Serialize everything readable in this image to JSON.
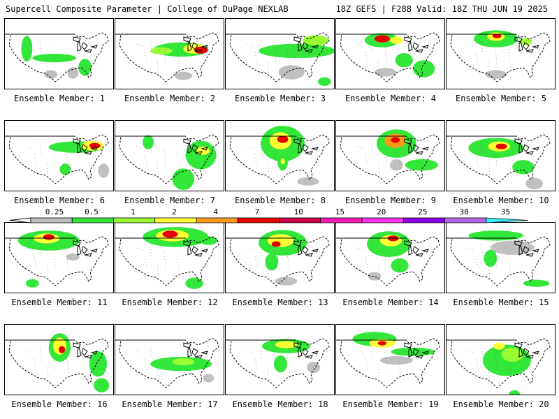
{
  "header": {
    "left": "Supercell Composite Parameter | College of DuPage NEXLAB",
    "right": "18Z GEFS | F288 Valid: 18Z THU JUN 19 2025"
  },
  "members": [
    {
      "label": "Ensemble Member: 1",
      "blobs": [
        [
          0.2,
          0.42,
          0.05,
          0.18,
          "#33e63a"
        ],
        [
          0.45,
          0.55,
          0.2,
          0.06,
          "#33e63a"
        ],
        [
          0.73,
          0.68,
          0.06,
          0.12,
          "#33e63a"
        ],
        [
          0.42,
          0.78,
          0.06,
          0.06,
          "#c0c0c0"
        ],
        [
          0.62,
          0.76,
          0.05,
          0.08,
          "#c0c0c0"
        ]
      ]
    },
    {
      "label": "Ensemble Member: 2",
      "blobs": [
        [
          0.6,
          0.43,
          0.25,
          0.1,
          "#33e63a"
        ],
        [
          0.72,
          0.42,
          0.1,
          0.07,
          "#ffff33"
        ],
        [
          0.78,
          0.44,
          0.06,
          0.05,
          "#e60000"
        ],
        [
          0.42,
          0.45,
          0.1,
          0.05,
          "#99ff33"
        ],
        [
          0.62,
          0.8,
          0.08,
          0.06,
          "#c0c0c0"
        ]
      ]
    },
    {
      "label": "Ensemble Member: 3",
      "blobs": [
        [
          0.65,
          0.45,
          0.35,
          0.1,
          "#33e63a"
        ],
        [
          0.82,
          0.3,
          0.12,
          0.07,
          "#99ff33"
        ],
        [
          0.6,
          0.75,
          0.12,
          0.1,
          "#c0c0c0"
        ],
        [
          0.9,
          0.88,
          0.06,
          0.06,
          "#33e63a"
        ]
      ]
    },
    {
      "label": "Ensemble Member: 4",
      "blobs": [
        [
          0.42,
          0.3,
          0.16,
          0.1,
          "#33e63a"
        ],
        [
          0.42,
          0.28,
          0.07,
          0.05,
          "#e60000"
        ],
        [
          0.55,
          0.3,
          0.06,
          0.05,
          "#ffff33"
        ],
        [
          0.62,
          0.58,
          0.08,
          0.1,
          "#33e63a"
        ],
        [
          0.8,
          0.7,
          0.1,
          0.12,
          "#33e63a"
        ],
        [
          0.45,
          0.75,
          0.1,
          0.06,
          "#c0c0c0"
        ]
      ]
    },
    {
      "label": "Ensemble Member: 5",
      "blobs": [
        [
          0.45,
          0.28,
          0.2,
          0.12,
          "#33e63a"
        ],
        [
          0.45,
          0.25,
          0.08,
          0.06,
          "#ffff33"
        ],
        [
          0.46,
          0.24,
          0.04,
          0.03,
          "#e60000"
        ],
        [
          0.72,
          0.32,
          0.06,
          0.05,
          "#99ff33"
        ],
        [
          0.45,
          0.78,
          0.1,
          0.06,
          "#c0c0c0"
        ]
      ]
    },
    {
      "label": "Ensemble Member: 6",
      "blobs": [
        [
          0.65,
          0.37,
          0.25,
          0.08,
          "#33e63a"
        ],
        [
          0.8,
          0.35,
          0.1,
          0.07,
          "#ffff33"
        ],
        [
          0.82,
          0.35,
          0.05,
          0.04,
          "#e60000"
        ],
        [
          0.55,
          0.68,
          0.05,
          0.08,
          "#33e63a"
        ],
        [
          0.9,
          0.7,
          0.05,
          0.1,
          "#c0c0c0"
        ]
      ]
    },
    {
      "label": "Ensemble Member: 7",
      "blobs": [
        [
          0.78,
          0.48,
          0.14,
          0.2,
          "#33e63a"
        ],
        [
          0.8,
          0.42,
          0.06,
          0.06,
          "#ffff33"
        ],
        [
          0.62,
          0.82,
          0.1,
          0.15,
          "#33e63a"
        ],
        [
          0.3,
          0.3,
          0.05,
          0.1,
          "#33e63a"
        ]
      ]
    },
    {
      "label": "Ensemble Member: 8",
      "blobs": [
        [
          0.52,
          0.32,
          0.2,
          0.25,
          "#33e63a"
        ],
        [
          0.5,
          0.28,
          0.1,
          0.12,
          "#ffff33"
        ],
        [
          0.52,
          0.26,
          0.05,
          0.05,
          "#e60000"
        ],
        [
          0.52,
          0.55,
          0.05,
          0.15,
          "#33e63a"
        ],
        [
          0.52,
          0.57,
          0.02,
          0.04,
          "#ffff33"
        ],
        [
          0.75,
          0.85,
          0.1,
          0.06,
          "#c0c0c0"
        ]
      ]
    },
    {
      "label": "Ensemble Member: 9",
      "blobs": [
        [
          0.55,
          0.32,
          0.18,
          0.2,
          "#33e63a"
        ],
        [
          0.54,
          0.28,
          0.1,
          0.1,
          "#ff9a1a"
        ],
        [
          0.54,
          0.27,
          0.04,
          0.04,
          "#e60000"
        ],
        [
          0.78,
          0.62,
          0.15,
          0.08,
          "#33e63a"
        ],
        [
          0.55,
          0.62,
          0.06,
          0.08,
          "#c0c0c0"
        ]
      ]
    },
    {
      "label": "Ensemble Member: 10",
      "blobs": [
        [
          0.45,
          0.38,
          0.25,
          0.14,
          "#33e63a"
        ],
        [
          0.48,
          0.36,
          0.1,
          0.07,
          "#ffff33"
        ],
        [
          0.5,
          0.36,
          0.05,
          0.04,
          "#e60000"
        ],
        [
          0.7,
          0.65,
          0.1,
          0.1,
          "#33e63a"
        ],
        [
          0.8,
          0.88,
          0.08,
          0.08,
          "#c0c0c0"
        ]
      ]
    },
    {
      "label": "Ensemble Member: 11",
      "blobs": [
        [
          0.4,
          0.25,
          0.28,
          0.14,
          "#33e63a"
        ],
        [
          0.38,
          0.22,
          0.12,
          0.07,
          "#ffff33"
        ],
        [
          0.4,
          0.2,
          0.05,
          0.04,
          "#e60000"
        ],
        [
          0.25,
          0.85,
          0.06,
          0.06,
          "#33e63a"
        ],
        [
          0.62,
          0.48,
          0.06,
          0.05,
          "#c0c0c0"
        ]
      ]
    },
    {
      "label": "Ensemble Member: 12",
      "blobs": [
        [
          0.55,
          0.2,
          0.3,
          0.14,
          "#33e63a"
        ],
        [
          0.52,
          0.18,
          0.15,
          0.08,
          "#ffff33"
        ],
        [
          0.5,
          0.16,
          0.07,
          0.05,
          "#e60000"
        ],
        [
          0.85,
          0.25,
          0.08,
          0.06,
          "#33e63a"
        ],
        [
          0.72,
          0.85,
          0.08,
          0.08,
          "#33e63a"
        ]
      ]
    },
    {
      "label": "Ensemble Member: 13",
      "blobs": [
        [
          0.52,
          0.28,
          0.22,
          0.18,
          "#33e63a"
        ],
        [
          0.5,
          0.25,
          0.12,
          0.09,
          "#ffff33"
        ],
        [
          0.46,
          0.3,
          0.04,
          0.04,
          "#e60000"
        ],
        [
          0.42,
          0.55,
          0.06,
          0.12,
          "#33e63a"
        ],
        [
          0.55,
          0.82,
          0.1,
          0.06,
          "#c0c0c0"
        ]
      ]
    },
    {
      "label": "Ensemble Member: 14",
      "blobs": [
        [
          0.48,
          0.3,
          0.2,
          0.18,
          "#33e63a"
        ],
        [
          0.5,
          0.25,
          0.1,
          0.08,
          "#ffff33"
        ],
        [
          0.52,
          0.22,
          0.05,
          0.04,
          "#e60000"
        ],
        [
          0.58,
          0.6,
          0.08,
          0.1,
          "#33e63a"
        ],
        [
          0.35,
          0.75,
          0.06,
          0.06,
          "#c0c0c0"
        ]
      ]
    },
    {
      "label": "Ensemble Member: 15",
      "blobs": [
        [
          0.45,
          0.18,
          0.25,
          0.07,
          "#33e63a"
        ],
        [
          0.6,
          0.35,
          0.2,
          0.1,
          "#c0c0c0"
        ],
        [
          0.4,
          0.5,
          0.06,
          0.12,
          "#33e63a"
        ],
        [
          0.82,
          0.85,
          0.12,
          0.05,
          "#33e63a"
        ]
      ]
    },
    {
      "label": "Ensemble Member: 16",
      "blobs": [
        [
          0.5,
          0.32,
          0.1,
          0.2,
          "#33e63a"
        ],
        [
          0.5,
          0.3,
          0.06,
          0.12,
          "#ffff33"
        ],
        [
          0.52,
          0.35,
          0.03,
          0.05,
          "#e60000"
        ],
        [
          0.85,
          0.55,
          0.08,
          0.18,
          "#33e63a"
        ],
        [
          0.88,
          0.85,
          0.07,
          0.1,
          "#33e63a"
        ]
      ]
    },
    {
      "label": "Ensemble Member: 17",
      "blobs": [
        [
          0.6,
          0.55,
          0.28,
          0.1,
          "#33e63a"
        ],
        [
          0.62,
          0.52,
          0.1,
          0.05,
          "#99ff33"
        ],
        [
          0.85,
          0.75,
          0.05,
          0.06,
          "#c0c0c0"
        ]
      ]
    },
    {
      "label": "Ensemble Member: 18",
      "blobs": [
        [
          0.55,
          0.3,
          0.22,
          0.1,
          "#33e63a"
        ],
        [
          0.55,
          0.28,
          0.1,
          0.05,
          "#ffff33"
        ],
        [
          0.5,
          0.55,
          0.06,
          0.12,
          "#33e63a"
        ],
        [
          0.8,
          0.6,
          0.06,
          0.08,
          "#c0c0c0"
        ]
      ]
    },
    {
      "label": "Ensemble Member: 19",
      "blobs": [
        [
          0.35,
          0.2,
          0.2,
          0.1,
          "#33e63a"
        ],
        [
          0.42,
          0.26,
          0.12,
          0.06,
          "#ffff33"
        ],
        [
          0.42,
          0.26,
          0.04,
          0.03,
          "#e60000"
        ],
        [
          0.7,
          0.38,
          0.2,
          0.06,
          "#33e63a"
        ],
        [
          0.55,
          0.5,
          0.15,
          0.06,
          "#c0c0c0"
        ]
      ]
    },
    {
      "label": "Ensemble Member: 20",
      "blobs": [
        [
          0.55,
          0.5,
          0.22,
          0.22,
          "#33e63a"
        ],
        [
          0.6,
          0.42,
          0.1,
          0.1,
          "#99ff33"
        ],
        [
          0.48,
          0.3,
          0.05,
          0.05,
          "#ffff33"
        ],
        [
          0.62,
          0.98,
          0.05,
          0.06,
          "#33e63a"
        ]
      ]
    }
  ],
  "colorbar": {
    "labels": [
      "0.25",
      "0.5",
      "1",
      "2",
      "4",
      "7",
      "10",
      "15",
      "20",
      "25",
      "30",
      "35"
    ],
    "colors": [
      "#c0c0c0",
      "#33e63a",
      "#99ff33",
      "#ffff33",
      "#ff9a1a",
      "#e60000",
      "#cc0044",
      "#ff1ab3",
      "#ff33ee",
      "#8800ee",
      "#b366ee",
      "#33eeff"
    ]
  }
}
